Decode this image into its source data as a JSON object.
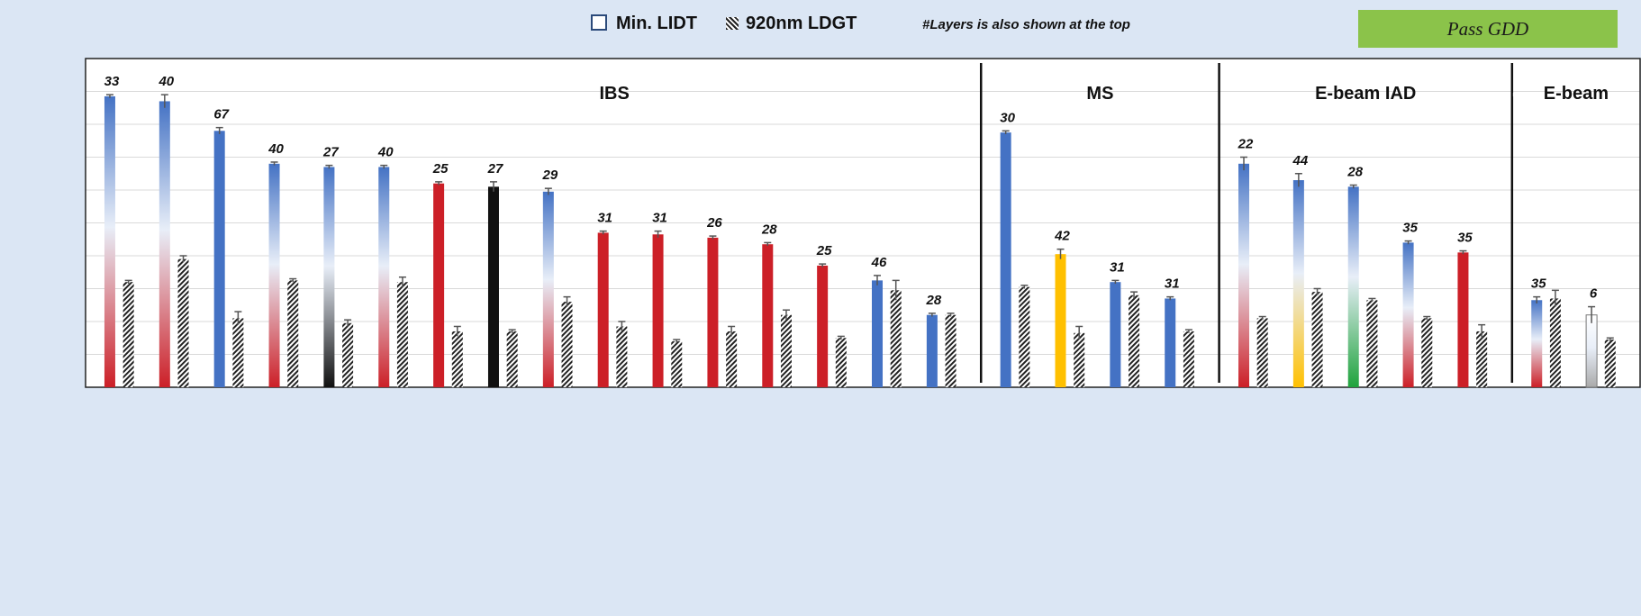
{
  "legend": {
    "lidt_label": "Min. LIDT",
    "ldgt_label": "920nm LDGT",
    "note": "#Layers is also shown at the top"
  },
  "badge": {
    "label": "Pass GDD",
    "color": "#8bc34a"
  },
  "colors": {
    "blue": "#4472c4",
    "red": "#cc1f27",
    "black": "#111111",
    "navy": "#1f3864",
    "yellow": "#ffc000",
    "green": "#1fa33d",
    "gray": "#aaaaaa",
    "ldgt_hatch": "#222222",
    "grid": "#d9d9d9"
  },
  "chart_data": {
    "type": "bar",
    "ylim": [
      0,
      10
    ],
    "grid": true,
    "groups": [
      {
        "name": "IBS",
        "start": 0,
        "end": 15
      },
      {
        "name": "MS",
        "start": 16,
        "end": 19
      },
      {
        "name": "E-beam IAD",
        "start": 20,
        "end": 24
      },
      {
        "name": "E-beam",
        "start": 25,
        "end": 26
      }
    ],
    "series": [
      {
        "name": "Min. LIDT"
      },
      {
        "name": "920nm LDGT"
      }
    ],
    "samples": [
      {
        "layers": "33",
        "lidt": 8.85,
        "lidt_err": 0.05,
        "ldgt": 3.2,
        "ldgt_err": 0.05,
        "top": "blue",
        "bottom": "red"
      },
      {
        "layers": "40",
        "lidt": 8.7,
        "lidt_err": 0.2,
        "ldgt": 3.9,
        "ldgt_err": 0.1,
        "top": "blue",
        "bottom": "red"
      },
      {
        "layers": "67",
        "lidt": 7.8,
        "lidt_err": 0.1,
        "ldgt": 2.1,
        "ldgt_err": 0.2,
        "top": "blue",
        "bottom": "blue"
      },
      {
        "layers": "40",
        "lidt": 6.8,
        "lidt_err": 0.05,
        "ldgt": 3.25,
        "ldgt_err": 0.05,
        "top": "blue",
        "bottom": "red"
      },
      {
        "layers": "27",
        "lidt": 6.7,
        "lidt_err": 0.05,
        "ldgt": 1.95,
        "ldgt_err": 0.1,
        "top": "blue",
        "bottom": "black"
      },
      {
        "layers": "40",
        "lidt": 6.7,
        "lidt_err": 0.05,
        "ldgt": 3.2,
        "ldgt_err": 0.15,
        "top": "blue",
        "bottom": "red"
      },
      {
        "layers": "25",
        "lidt": 6.2,
        "lidt_err": 0.05,
        "ldgt": 1.7,
        "ldgt_err": 0.15,
        "top": "red",
        "bottom": "red"
      },
      {
        "layers": "27",
        "lidt": 6.1,
        "lidt_err": 0.15,
        "ldgt": 1.7,
        "ldgt_err": 0.05,
        "top": "black",
        "bottom": "black"
      },
      {
        "layers": "29",
        "lidt": 5.95,
        "lidt_err": 0.1,
        "ldgt": 2.6,
        "ldgt_err": 0.15,
        "top": "blue",
        "bottom": "red"
      },
      {
        "layers": "31",
        "lidt": 4.7,
        "lidt_err": 0.05,
        "ldgt": 1.85,
        "ldgt_err": 0.15,
        "top": "red",
        "bottom": "red"
      },
      {
        "layers": "31",
        "lidt": 4.65,
        "lidt_err": 0.1,
        "ldgt": 1.4,
        "ldgt_err": 0.05,
        "top": "red",
        "bottom": "red"
      },
      {
        "layers": "26",
        "lidt": 4.55,
        "lidt_err": 0.05,
        "ldgt": 1.7,
        "ldgt_err": 0.15,
        "top": "red",
        "bottom": "red"
      },
      {
        "layers": "28",
        "lidt": 4.35,
        "lidt_err": 0.05,
        "ldgt": 2.2,
        "ldgt_err": 0.15,
        "top": "red",
        "bottom": "red"
      },
      {
        "layers": "25",
        "lidt": 3.7,
        "lidt_err": 0.05,
        "ldgt": 1.5,
        "ldgt_err": 0.05,
        "top": "red",
        "bottom": "red"
      },
      {
        "layers": "46",
        "lidt": 3.25,
        "lidt_err": 0.15,
        "ldgt": 2.95,
        "ldgt_err": 0.3,
        "top": "blue",
        "bottom": "blue"
      },
      {
        "layers": "28",
        "lidt": 2.2,
        "lidt_err": 0.05,
        "ldgt": 2.2,
        "ldgt_err": 0.05,
        "top": "blue",
        "bottom": "blue"
      },
      {
        "layers": "30",
        "lidt": 7.75,
        "lidt_err": 0.05,
        "ldgt": 3.05,
        "ldgt_err": 0.05,
        "top": "blue",
        "bottom": "blue"
      },
      {
        "layers": "42",
        "lidt": 4.05,
        "lidt_err": 0.15,
        "ldgt": 1.65,
        "ldgt_err": 0.2,
        "top": "yellow",
        "bottom": "yellow"
      },
      {
        "layers": "31",
        "lidt": 3.2,
        "lidt_err": 0.05,
        "ldgt": 2.8,
        "ldgt_err": 0.1,
        "top": "blue",
        "bottom": "blue"
      },
      {
        "layers": "31",
        "lidt": 2.7,
        "lidt_err": 0.05,
        "ldgt": 1.7,
        "ldgt_err": 0.05,
        "top": "blue",
        "bottom": "blue"
      },
      {
        "layers": "22",
        "lidt": 6.8,
        "lidt_err": 0.2,
        "ldgt": 2.1,
        "ldgt_err": 0.05,
        "top": "blue",
        "bottom": "red"
      },
      {
        "layers": "44",
        "lidt": 6.3,
        "lidt_err": 0.2,
        "ldgt": 2.9,
        "ldgt_err": 0.1,
        "top": "blue",
        "bottom": "yellow"
      },
      {
        "layers": "28",
        "lidt": 6.1,
        "lidt_err": 0.05,
        "ldgt": 2.65,
        "ldgt_err": 0.05,
        "top": "blue",
        "bottom": "green"
      },
      {
        "layers": "35",
        "lidt": 4.4,
        "lidt_err": 0.05,
        "ldgt": 2.1,
        "ldgt_err": 0.05,
        "top": "blue",
        "bottom": "red"
      },
      {
        "layers": "35",
        "lidt": 4.1,
        "lidt_err": 0.05,
        "ldgt": 1.7,
        "ldgt_err": 0.2,
        "top": "red",
        "bottom": "red"
      },
      {
        "layers": "35",
        "lidt": 2.65,
        "lidt_err": 0.1,
        "ldgt": 2.7,
        "ldgt_err": 0.25,
        "top": "blue",
        "bottom": "red"
      },
      {
        "layers": "6",
        "lidt": 2.2,
        "lidt_err": 0.25,
        "ldgt": 1.45,
        "ldgt_err": 0.05,
        "top": "white",
        "bottom": "gray"
      }
    ]
  }
}
